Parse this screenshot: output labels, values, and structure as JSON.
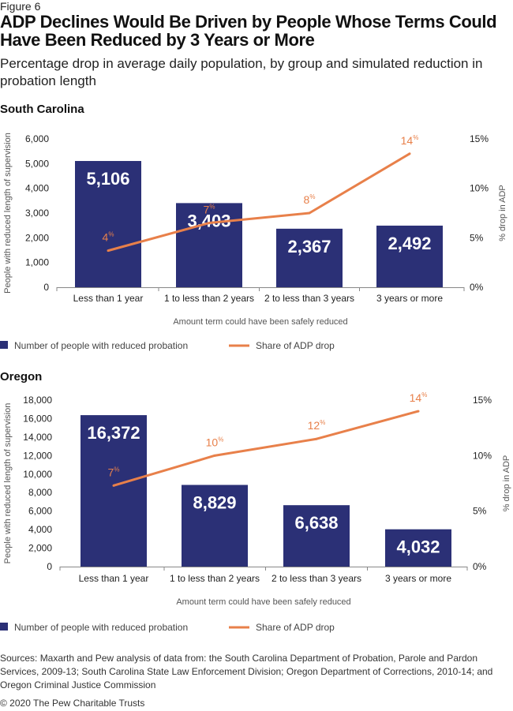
{
  "figure_label": "Figure 6",
  "title": "ADP Declines Would Be Driven by People Whose Terms Could Have Been Reduced by 3 Years or More",
  "subtitle": "Percentage drop in average daily population, by group and simulated reduction in probation length",
  "colors": {
    "bar": "#2b3076",
    "line": "#e8804a",
    "axis": "#888888"
  },
  "chart_data": [
    {
      "type": "bar",
      "title": "South Carolina",
      "categories": [
        "Less than 1 year",
        "1 to less than 2 years",
        "2 to less than 3 years",
        "3 years or more"
      ],
      "series": [
        {
          "name": "Number of people with reduced probation",
          "type": "bar",
          "axis": "left",
          "values": [
            5106,
            3403,
            2367,
            2492
          ],
          "labels": [
            "5,106",
            "3,403",
            "2,367",
            "2,492"
          ]
        },
        {
          "name": "Share of ADP drop",
          "type": "line",
          "axis": "right",
          "values": [
            3.7,
            6.5,
            7.5,
            13.5
          ],
          "labels": [
            "4",
            "7",
            "8",
            "14"
          ]
        }
      ],
      "xlabel": "Amount term could have been safely reduced",
      "ylabel": "People with reduced length of supervision",
      "y2label": "% drop in ADP",
      "ylim": [
        0,
        6000
      ],
      "yticks": [
        "0",
        "1,000",
        "2,000",
        "3,000",
        "4,000",
        "5,000",
        "6,000"
      ],
      "y2lim": [
        0,
        15
      ],
      "y2ticks": [
        "0%",
        "5%",
        "10%",
        "15%"
      ],
      "legend": "bottom"
    },
    {
      "type": "bar",
      "title": "Oregon",
      "categories": [
        "Less than 1 year",
        "1 to less than 2 years",
        "2 to less than 3 years",
        "3 years or more"
      ],
      "series": [
        {
          "name": "Number of people with reduced probation",
          "type": "bar",
          "axis": "left",
          "values": [
            16372,
            8829,
            6638,
            4032
          ],
          "labels": [
            "16,372",
            "8,829",
            "6,638",
            "4,032"
          ]
        },
        {
          "name": "Share of ADP drop",
          "type": "line",
          "axis": "right",
          "values": [
            7.3,
            10.0,
            11.5,
            14.0
          ],
          "labels": [
            "7",
            "10",
            "12",
            "14"
          ]
        }
      ],
      "xlabel": "Amount term could have been safely reduced",
      "ylabel": "People with reduced length of supervision",
      "y2label": "% drop in ADP",
      "ylim": [
        0,
        18000
      ],
      "yticks": [
        "0",
        "2,000",
        "4,000",
        "6,000",
        "8,000",
        "10,000",
        "12,000",
        "14,000",
        "16,000",
        "18,000"
      ],
      "y2lim": [
        0,
        15
      ],
      "y2ticks": [
        "0%",
        "5%",
        "10%",
        "15%"
      ],
      "legend": "bottom"
    }
  ],
  "percent_sign": "%",
  "sources": "Sources: Maxarth and Pew analysis of data from: the South Carolina Department of Probation, Parole and Pardon Services, 2009-13; South Carolina State Law Enforcement Division; Oregon Department of Corrections, 2010-14; and Oregon Criminal Justice Commission",
  "copyright": "© 2020 The Pew Charitable Trusts"
}
